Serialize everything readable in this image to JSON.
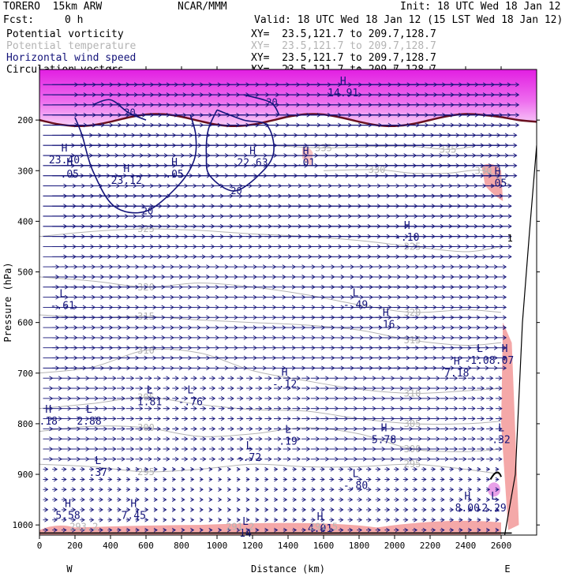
{
  "header": {
    "model": "TORERO  15km ARW",
    "center": "NCAR/MMM",
    "init": "Init: 18 UTC Wed 18 Jan 12",
    "fcst_label": "Fcst:",
    "fcst_value": "0 h",
    "valid": "Valid: 18 UTC Wed 18 Jan 12 (15 LST Wed 18 Jan 12)"
  },
  "legend": [
    {
      "name": "Potential vorticity",
      "xy": "XY=  23.5,121.7 to 209.7,128.7",
      "color": "#000000"
    },
    {
      "name": "Potential temperature",
      "xy": "XY=  23.5,121.7 to 209.7,128.7",
      "color": "#b4b4b4"
    },
    {
      "name": "Horizontal wind speed",
      "xy": "XY=  23.5,121.7 to 209.7,128.7",
      "color": "#14147a"
    },
    {
      "name": "Circulation vectors",
      "xy": "XY=  23.5,121.7 to 209.7,128.7",
      "color": "#000000"
    }
  ],
  "chart_data": {
    "type": "cross-section",
    "xlabel": "Distance (km)",
    "ylabel": "Pressure (hPa)",
    "xlim": [
      0,
      2800
    ],
    "ylim": [
      100,
      1020
    ],
    "x_ticks": [
      0,
      200,
      400,
      600,
      800,
      1000,
      1200,
      1400,
      1600,
      1800,
      2000,
      2200,
      2400,
      2600
    ],
    "y_ticks": [
      200,
      300,
      400,
      500,
      600,
      700,
      800,
      900,
      1000
    ],
    "x_end_labels": {
      "left": "W",
      "right": "E"
    },
    "colors": {
      "pv_high": "#e21ee2",
      "pv_low": "#f7c2f2",
      "pv_pink": "#f4a8a8",
      "theta": "#b4b4b4",
      "wind": "#14147a",
      "vector": "#14147a",
      "axis": "#000000"
    },
    "theta_contours": [
      {
        "label": "295",
        "pts": [
          [
            0,
            880
          ],
          [
            300,
            885
          ],
          [
            600,
            895
          ],
          [
            900,
            890
          ],
          [
            1200,
            880
          ],
          [
            1500,
            885
          ],
          [
            1800,
            885
          ],
          [
            2100,
            880
          ],
          [
            2400,
            890
          ],
          [
            2600,
            900
          ]
        ]
      },
      {
        "label": "300",
        "pts": [
          [
            0,
            815
          ],
          [
            300,
            805
          ],
          [
            600,
            808
          ],
          [
            900,
            825
          ],
          [
            1200,
            820
          ],
          [
            1500,
            808
          ],
          [
            1800,
            820
          ],
          [
            2100,
            850
          ],
          [
            2400,
            855
          ],
          [
            2600,
            850
          ]
        ]
      },
      {
        "label": "305",
        "pts": [
          [
            0,
            770
          ],
          [
            300,
            760
          ],
          [
            600,
            748
          ],
          [
            900,
            762
          ],
          [
            1200,
            772
          ],
          [
            1500,
            775
          ],
          [
            1800,
            790
          ],
          [
            2100,
            800
          ],
          [
            2400,
            800
          ],
          [
            2600,
            795
          ]
        ]
      },
      {
        "label": "310",
        "pts": [
          [
            0,
            700
          ],
          [
            300,
            688
          ],
          [
            600,
            655
          ],
          [
            900,
            660
          ],
          [
            1200,
            695
          ],
          [
            1500,
            715
          ],
          [
            1800,
            732
          ],
          [
            2100,
            740
          ],
          [
            2400,
            735
          ],
          [
            2600,
            730
          ]
        ]
      },
      {
        "label": "315",
        "pts": [
          [
            0,
            585
          ],
          [
            300,
            590
          ],
          [
            600,
            588
          ],
          [
            900,
            595
          ],
          [
            1200,
            600
          ],
          [
            1500,
            605
          ],
          [
            1800,
            615
          ],
          [
            2100,
            635
          ],
          [
            2400,
            645
          ],
          [
            2600,
            640
          ]
        ]
      },
      {
        "label": "320",
        "pts": [
          [
            0,
            510
          ],
          [
            300,
            518
          ],
          [
            600,
            530
          ],
          [
            900,
            522
          ],
          [
            1200,
            530
          ],
          [
            1500,
            545
          ],
          [
            1800,
            565
          ],
          [
            2100,
            580
          ],
          [
            2400,
            575
          ],
          [
            2600,
            580
          ]
        ]
      },
      {
        "label": "325",
        "pts": [
          [
            0,
            430
          ],
          [
            300,
            420
          ],
          [
            600,
            415
          ],
          [
            900,
            418
          ],
          [
            1200,
            425
          ],
          [
            1500,
            430
          ],
          [
            1800,
            438
          ],
          [
            2100,
            450
          ],
          [
            2400,
            460
          ],
          [
            2600,
            450
          ]
        ]
      },
      {
        "label": "330",
        "pts": [
          [
            1600,
            300
          ],
          [
            1900,
            298
          ],
          [
            2100,
            305
          ],
          [
            2300,
            305
          ],
          [
            2500,
            300
          ],
          [
            2650,
            330
          ]
        ]
      },
      {
        "label": "335",
        "pts": [
          [
            1300,
            250
          ],
          [
            1600,
            255
          ],
          [
            1900,
            252
          ],
          [
            2100,
            252
          ],
          [
            2300,
            258
          ],
          [
            2450,
            252
          ]
        ]
      }
    ],
    "wind_contours": [
      {
        "label": "20",
        "pts": [
          [
            200,
            195
          ],
          [
            240,
            230
          ],
          [
            300,
            300
          ],
          [
            420,
            370
          ],
          [
            600,
            380
          ],
          [
            780,
            330
          ],
          [
            870,
            280
          ],
          [
            880,
            230
          ],
          [
            850,
            190
          ]
        ]
      },
      {
        "label": "20",
        "pts": [
          [
            1000,
            180
          ],
          [
            1150,
            200
          ],
          [
            1280,
            210
          ],
          [
            1320,
            260
          ],
          [
            1260,
            300
          ],
          [
            1100,
            340
          ],
          [
            960,
            310
          ],
          [
            940,
            270
          ],
          [
            950,
            220
          ],
          [
            1000,
            180
          ]
        ]
      },
      {
        "label": "20",
        "pts": [
          [
            300,
            170
          ],
          [
            400,
            160
          ],
          [
            500,
            185
          ],
          [
            600,
            200
          ]
        ]
      },
      {
        "label": "20",
        "pts": [
          [
            1150,
            150
          ],
          [
            1300,
            165
          ],
          [
            1350,
            190
          ]
        ]
      }
    ],
    "extremes": [
      {
        "type": "H",
        "value": "23.40",
        "x": 140,
        "p": 262
      },
      {
        "type": "H",
        "value": ".05",
        "x": 170,
        "p": 290
      },
      {
        "type": "H",
        "value": "23.12",
        "x": 490,
        "p": 303
      },
      {
        "type": "H",
        "value": ".05",
        "x": 760,
        "p": 290
      },
      {
        "type": "H",
        "value": "22.63",
        "x": 1200,
        "p": 268
      },
      {
        "type": "H",
        "value": ".01",
        "x": 1500,
        "p": 268
      },
      {
        "type": "H",
        "value": "14.91",
        "x": 1710,
        "p": 130
      },
      {
        "type": "H",
        "value": ".05",
        "x": 2580,
        "p": 308
      },
      {
        "type": "H",
        "value": "-.10",
        "x": 2070,
        "p": 415
      },
      {
        "type": "L",
        "value": "-.61",
        "x": 130,
        "p": 550
      },
      {
        "type": "L",
        "value": "-.49",
        "x": 1780,
        "p": 548
      },
      {
        "type": "H",
        "value": ".16",
        "x": 1950,
        "p": 587
      },
      {
        "type": "L",
        "value": "-1.08",
        "x": 2480,
        "p": 658
      },
      {
        "type": "H",
        "value": ".07",
        "x": 2620,
        "p": 658
      },
      {
        "type": "H",
        "value": "7.18",
        "x": 2350,
        "p": 683
      },
      {
        "type": "H",
        "value": "-.12",
        "x": 1380,
        "p": 705
      },
      {
        "type": "L",
        "value": "1.81",
        "x": 620,
        "p": 740
      },
      {
        "type": "L",
        "value": "-.76",
        "x": 850,
        "p": 740
      },
      {
        "type": "H",
        "value": ".18",
        "x": 50,
        "p": 778
      },
      {
        "type": "L",
        "value": "2.88",
        "x": 280,
        "p": 778
      },
      {
        "type": "L",
        "value": ".19",
        "x": 1400,
        "p": 818
      },
      {
        "type": "H",
        "value": "5.78",
        "x": 1940,
        "p": 815
      },
      {
        "type": "L",
        "value": ".32",
        "x": 2600,
        "p": 815
      },
      {
        "type": "L",
        "value": "-.72",
        "x": 1180,
        "p": 850
      },
      {
        "type": "L",
        "value": ".37",
        "x": 330,
        "p": 880
      },
      {
        "type": "L",
        "value": "-.80",
        "x": 1780,
        "p": 905
      },
      {
        "type": "H",
        "value": "5.58",
        "x": 160,
        "p": 965
      },
      {
        "type": "H",
        "value": "7.45",
        "x": 530,
        "p": 965
      },
      {
        "type": "H",
        "value": "8.00",
        "x": 2410,
        "p": 950
      },
      {
        "type": "L",
        "value": "2.29",
        "x": 2560,
        "p": 950
      },
      {
        "type": "H",
        "value": "4.01",
        "x": 1580,
        "p": 990
      },
      {
        "type": "L",
        "value": "14",
        "x": 1160,
        "p": 1000
      }
    ],
    "bottom_labels": [
      {
        "value": "293.2",
        "x": 250
      },
      {
        "value": "291.2",
        "x": 1130
      },
      {
        "value": "291.5",
        "x": 1600
      },
      {
        "value": "1",
        "x": 2650,
        "p": 440
      }
    ]
  }
}
